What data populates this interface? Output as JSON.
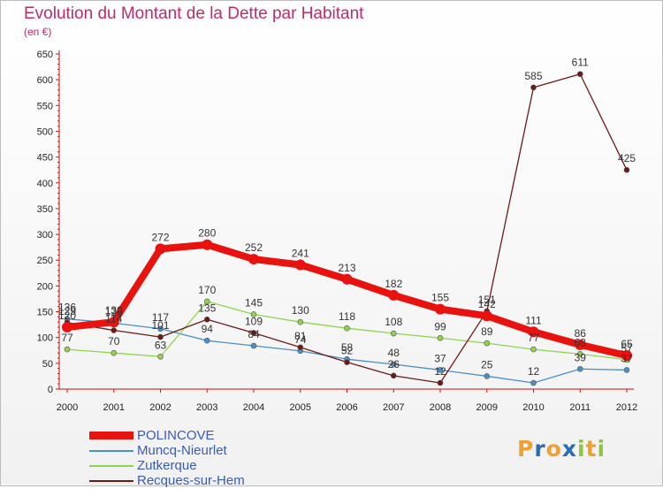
{
  "chart_data": {
    "type": "line",
    "title": "Evolution du Montant de la Dette par Habitant",
    "subtitle": "(en €)",
    "x": [
      "2000",
      "2001",
      "2002",
      "2003",
      "2004",
      "2005",
      "2006",
      "2007",
      "2008",
      "2009",
      "2010",
      "2011",
      "2012"
    ],
    "ylim": [
      0,
      650
    ],
    "yticks": [
      0,
      50,
      100,
      150,
      200,
      250,
      300,
      350,
      400,
      450,
      500,
      550,
      600,
      650
    ],
    "grid": false,
    "legend_position": "bottom-left",
    "series": [
      {
        "name": "POLINCOVE",
        "color": "#e8120e",
        "values": [
          120,
          130,
          272,
          280,
          252,
          241,
          213,
          182,
          155,
          142,
          111,
          86,
          65
        ]
      },
      {
        "name": "Muncq-Nieurlet",
        "color": "#4a90c8",
        "values": [
          136,
          128,
          117,
          94,
          84,
          74,
          58,
          48,
          37,
          25,
          12,
          39,
          37
        ]
      },
      {
        "name": "Zutkerque",
        "color": "#8ed54c",
        "values": [
          77,
          70,
          63,
          170,
          145,
          130,
          118,
          108,
          99,
          89,
          77,
          68,
          57
        ]
      },
      {
        "name": "Recques-sur-Hem",
        "color": "#6b1a1a",
        "values": [
          129,
          114,
          101,
          135,
          109,
          81,
          52,
          26,
          12,
          151,
          585,
          611,
          425
        ]
      }
    ]
  },
  "logo": {
    "letters": [
      "P",
      "r",
      "o",
      "x",
      "i",
      "t",
      "i"
    ],
    "colors": [
      "#f0a030",
      "#2d6cb8",
      "#f0a030",
      "#2d6cb8",
      "#8ec63f",
      "#f0a030",
      "#8ec63f"
    ]
  }
}
